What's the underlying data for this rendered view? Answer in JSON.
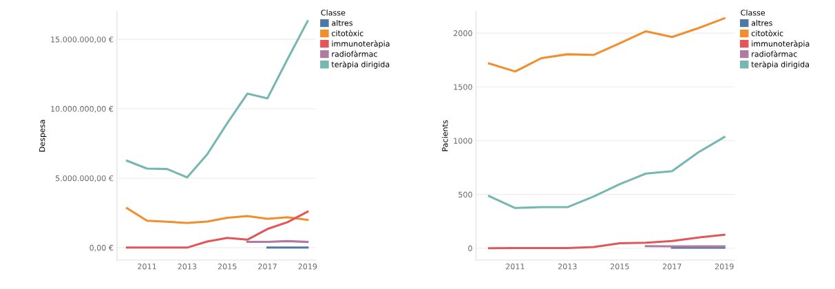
{
  "chart_data": [
    {
      "type": "line",
      "ylabel": "Despesa",
      "legend_title": "Classe",
      "legend": "right",
      "grid": "y",
      "marker": "none",
      "line_style": "solid",
      "x": [
        2010,
        2011,
        2012,
        2013,
        2014,
        2015,
        2016,
        2017,
        2018,
        2019
      ],
      "xlim": [
        2009.5,
        2019.4
      ],
      "xticks": [
        2011,
        2013,
        2015,
        2017,
        2019
      ],
      "ylim": [
        -900000,
        17000000
      ],
      "yticks": [
        {
          "value": 0,
          "label": "0,00 €"
        },
        {
          "value": 5000000,
          "label": "5.000.000,00 €"
        },
        {
          "value": 10000000,
          "label": "10.000.000,00 €"
        },
        {
          "value": 15000000,
          "label": "15.000.000,00 €"
        }
      ],
      "series": [
        {
          "name": "altres",
          "color": "#4e79a7",
          "values": [
            null,
            null,
            null,
            null,
            null,
            null,
            null,
            0,
            0,
            0
          ]
        },
        {
          "name": "citotòxic",
          "color": "#f28e2b",
          "values": [
            2840000,
            1940000,
            1860000,
            1780000,
            1880000,
            2150000,
            2270000,
            2070000,
            2190000,
            2000000
          ]
        },
        {
          "name": "immunoteràpia",
          "color": "#e15759",
          "values": [
            0,
            0,
            0,
            0,
            440000,
            700000,
            570000,
            1340000,
            1830000,
            2590000
          ]
        },
        {
          "name": "radiofàrmac",
          "color": "#b07aa1",
          "values": [
            null,
            null,
            null,
            null,
            null,
            null,
            410000,
            410000,
            470000,
            410000
          ]
        },
        {
          "name": "teràpia dirigida",
          "color": "#76b7b2",
          "values": [
            6260000,
            5690000,
            5660000,
            5060000,
            6720000,
            8970000,
            11090000,
            10750000,
            13570000,
            16310000
          ]
        }
      ]
    },
    {
      "type": "line",
      "ylabel": "Pacients",
      "legend_title": "Classe",
      "legend": "right",
      "grid": "y",
      "marker": "none",
      "line_style": "solid",
      "x": [
        2010,
        2011,
        2012,
        2013,
        2014,
        2015,
        2016,
        2017,
        2018,
        2019
      ],
      "xlim": [
        2009.5,
        2019.4
      ],
      "xticks": [
        2011,
        2013,
        2015,
        2017,
        2019
      ],
      "ylim": [
        -110,
        2200
      ],
      "yticks": [
        0,
        500,
        1000,
        1500,
        2000
      ],
      "series": [
        {
          "name": "altres",
          "color": "#4e79a7",
          "values": [
            null,
            null,
            null,
            null,
            null,
            null,
            null,
            5,
            5,
            5
          ]
        },
        {
          "name": "citotòxic",
          "color": "#f28e2b",
          "values": [
            1718,
            1643,
            1767,
            1803,
            1797,
            1906,
            2017,
            1964,
            2045,
            2137
          ]
        },
        {
          "name": "immunoteràpia",
          "color": "#e15759",
          "values": [
            0,
            2,
            2,
            2,
            11,
            47,
            51,
            68,
            100,
            126
          ]
        },
        {
          "name": "radiofàrmac",
          "color": "#b07aa1",
          "values": [
            null,
            null,
            null,
            null,
            null,
            null,
            19,
            18,
            17,
            17
          ]
        },
        {
          "name": "teràpia dirigida",
          "color": "#76b7b2",
          "values": [
            485,
            374,
            382,
            382,
            481,
            596,
            694,
            716,
            891,
            1034
          ]
        }
      ]
    }
  ]
}
